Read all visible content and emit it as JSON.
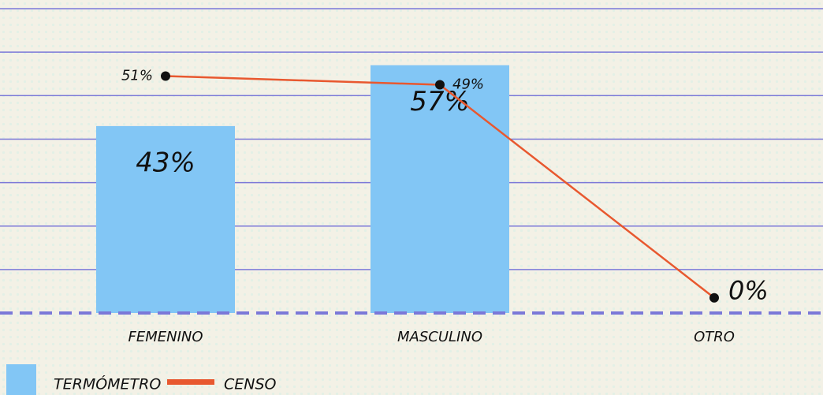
{
  "chart_data": {
    "type": "bar",
    "categories": [
      "FEMENINO",
      "MASCULINO",
      "OTRO"
    ],
    "series": [
      {
        "name": "TERMÓMETRO",
        "color": "#82c6f5",
        "values": [
          43,
          57,
          0
        ],
        "value_labels": [
          "43%",
          "57%",
          null
        ]
      },
      {
        "name": "CENSO",
        "type": "line",
        "axis": "y2",
        "color": "#e8582f",
        "values": [
          51,
          49,
          0
        ],
        "value_labels": [
          "51%",
          "49%",
          "0%"
        ]
      }
    ],
    "ylim": [
      0,
      72
    ],
    "yticks": [
      0,
      10,
      20,
      30,
      40,
      50,
      60,
      70
    ],
    "y2lim": [
      -3.5,
      68.5
    ],
    "grid": true,
    "legend": "bottom-left"
  }
}
